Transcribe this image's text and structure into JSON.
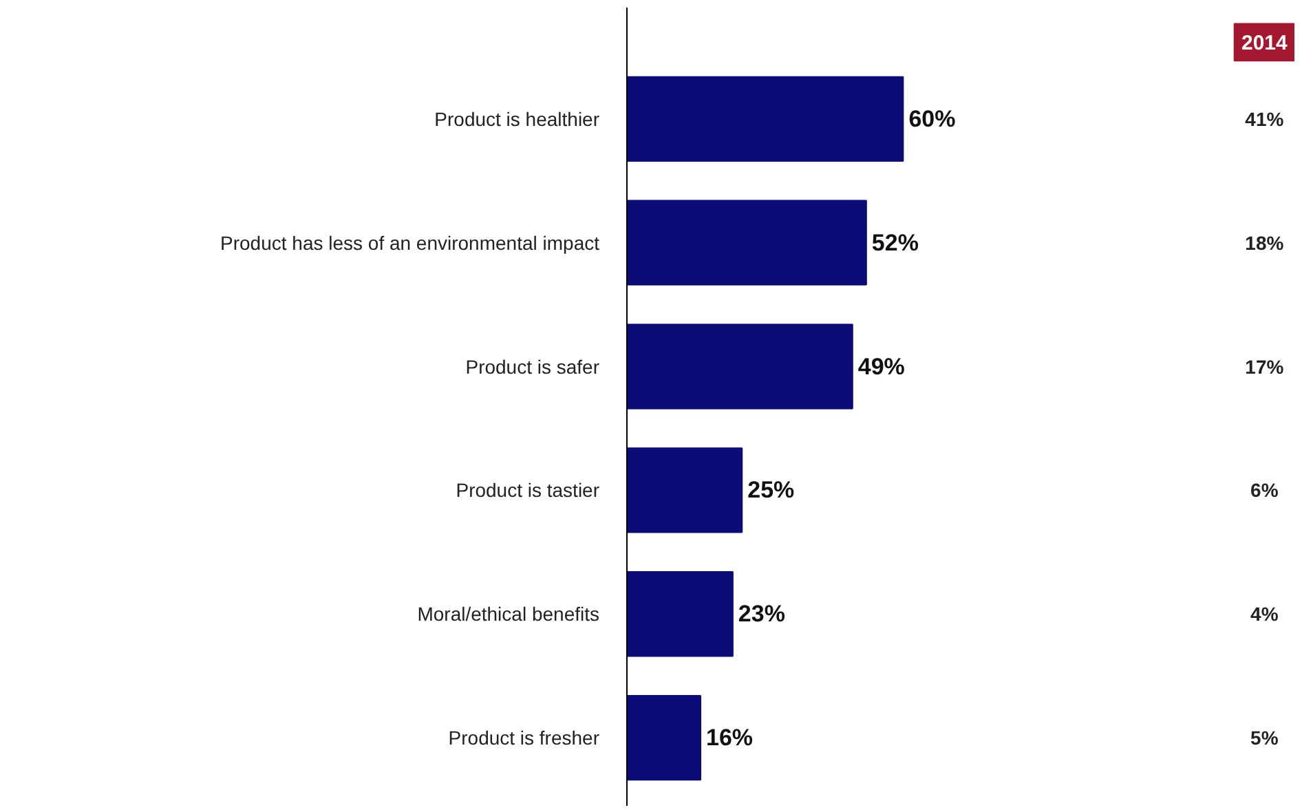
{
  "chart_data": {
    "type": "bar",
    "orientation": "horizontal",
    "categories": [
      "Product is healthier",
      "Product has less of an environmental impact",
      "Product is safer",
      "Product is tastier",
      "Moral/ethical benefits",
      "Product is fresher"
    ],
    "xlim": [
      0,
      145
    ],
    "series": [
      {
        "color": "#0c0c78",
        "values": [
          60,
          52,
          49,
          25,
          23,
          16
        ],
        "value_labels": [
          "60%",
          "52%",
          "49%",
          "25%",
          "23%",
          "16%"
        ]
      }
    ],
    "annotations": [
      "2014",
      "41%",
      "18%",
      "17%",
      "6%",
      "4%",
      "5%"
    ]
  }
}
